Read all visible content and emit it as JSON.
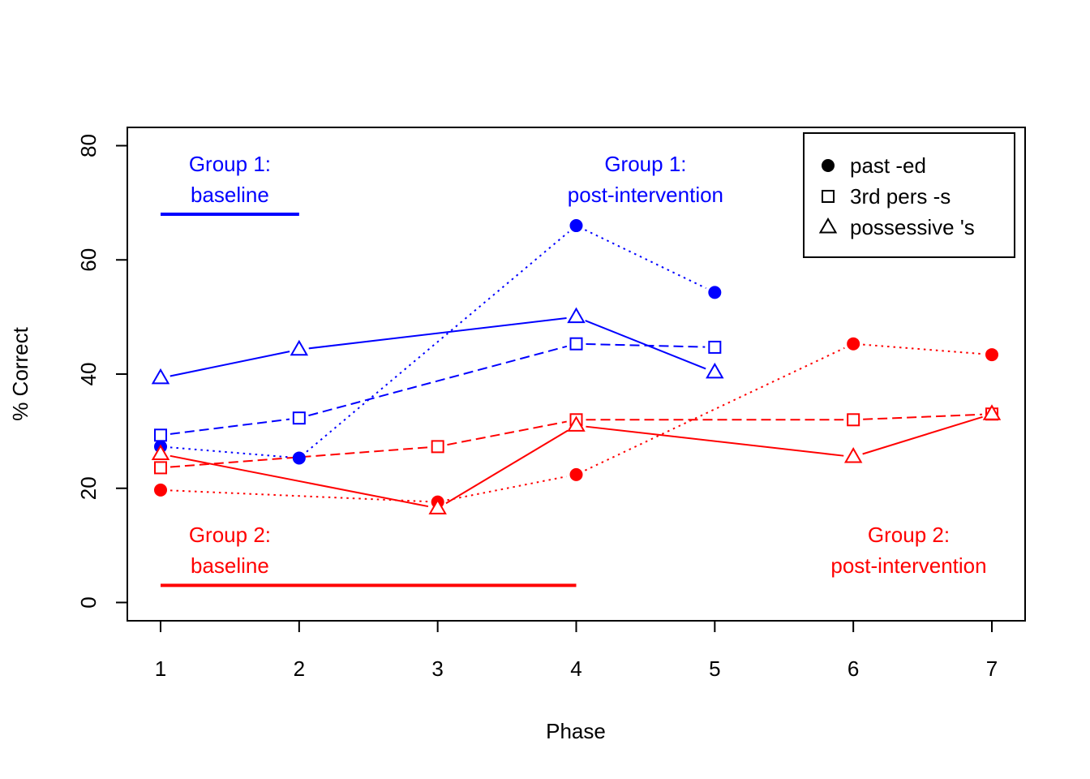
{
  "chart_data": {
    "type": "line",
    "title": "",
    "xlabel": "Phase",
    "ylabel": "% Correct",
    "xlim": [
      0.76,
      7.24
    ],
    "ylim": [
      -3.2,
      83.2
    ],
    "x_ticks": [
      "1",
      "2",
      "3",
      "4",
      "5",
      "6",
      "7"
    ],
    "y_ticks": [
      "0",
      "20",
      "40",
      "60",
      "80"
    ],
    "legend": {
      "position": "top-right",
      "entries": [
        {
          "label": "past -ed",
          "marker": "filled-circle"
        },
        {
          "label": "3rd pers -s",
          "marker": "open-square"
        },
        {
          "label": "possessive 's",
          "marker": "open-triangle"
        }
      ]
    },
    "series": [
      {
        "name": "Group 1 past -ed",
        "group": "Group 1",
        "color": "#0000FF",
        "marker": "filled-circle",
        "line": "dotted",
        "x": [
          1,
          2,
          4,
          5
        ],
        "values": [
          27.3,
          25.3,
          66.0,
          54.3
        ]
      },
      {
        "name": "Group 1 3rd pers -s",
        "group": "Group 1",
        "color": "#0000FF",
        "marker": "open-square",
        "line": "dashed",
        "x": [
          1,
          2,
          4,
          5
        ],
        "values": [
          29.3,
          32.3,
          45.3,
          44.7
        ]
      },
      {
        "name": "Group 1 possessive 's",
        "group": "Group 1",
        "color": "#0000FF",
        "marker": "open-triangle",
        "line": "solid",
        "x": [
          1,
          2,
          4,
          5
        ],
        "values": [
          39.3,
          44.3,
          50.0,
          40.3
        ]
      },
      {
        "name": "Group 2 past -ed",
        "group": "Group 2",
        "color": "#FF0000",
        "marker": "filled-circle",
        "line": "dotted",
        "x": [
          1,
          3,
          4,
          6,
          7
        ],
        "values": [
          19.7,
          17.6,
          22.4,
          45.3,
          43.4
        ]
      },
      {
        "name": "Group 2 3rd pers -s",
        "group": "Group 2",
        "color": "#FF0000",
        "marker": "open-square",
        "line": "dashed",
        "x": [
          1,
          3,
          4,
          6,
          7
        ],
        "values": [
          23.6,
          27.3,
          32.0,
          32.0,
          33.0
        ]
      },
      {
        "name": "Group 2 possessive 's",
        "group": "Group 2",
        "color": "#FF0000",
        "marker": "open-triangle",
        "line": "solid",
        "x": [
          1,
          3,
          4,
          6,
          7
        ],
        "values": [
          26.0,
          16.5,
          31.0,
          25.5,
          33.0
        ]
      }
    ],
    "baselines": [
      {
        "name": "group1-baseline-line",
        "color": "#0000FF",
        "x_start": 1,
        "x_end": 2,
        "y": 68
      },
      {
        "name": "group2-baseline-line",
        "color": "#FF0000",
        "x_start": 1,
        "x_end": 4,
        "y": 3
      }
    ],
    "annotations": [
      {
        "name": "group1-baseline-annotation",
        "color": "#0000FF",
        "line1": "Group 1:",
        "line2": "baseline",
        "x": 1.5,
        "y": 73
      },
      {
        "name": "group1-post-annotation",
        "color": "#0000FF",
        "line1": "Group 1:",
        "line2": "post-intervention",
        "x": 4.5,
        "y": 73
      },
      {
        "name": "group2-baseline-annotation",
        "color": "#FF0000",
        "line1": "Group 2:",
        "line2": "baseline",
        "x": 1.5,
        "y": 8
      },
      {
        "name": "group2-post-annotation",
        "color": "#FF0000",
        "line1": "Group 2:",
        "line2": "post-intervention",
        "x": 6.4,
        "y": 8
      }
    ]
  }
}
